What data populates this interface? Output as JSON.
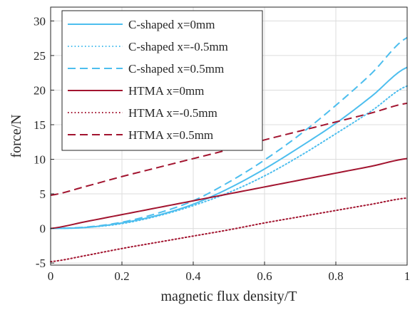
{
  "chart_data": {
    "type": "line",
    "xlabel": "magnetic flux density/T",
    "ylabel": "force/N",
    "xlim": [
      0,
      1
    ],
    "ylim": [
      -5.3,
      32
    ],
    "xticks": [
      0,
      0.2,
      0.4,
      0.6,
      0.8,
      1
    ],
    "xtick_labels": [
      "0",
      "0.2",
      "0.4",
      "0.6",
      "0.8",
      "1"
    ],
    "yticks": [
      -5,
      0,
      5,
      10,
      15,
      20,
      25,
      30
    ],
    "ytick_labels": [
      "-5",
      "0",
      "5",
      "10",
      "15",
      "20",
      "25",
      "30"
    ],
    "grid": true,
    "legend_position": "top-left",
    "x": [
      0,
      0.1,
      0.2,
      0.3,
      0.4,
      0.5,
      0.6,
      0.7,
      0.8,
      0.9,
      1.0
    ],
    "series": [
      {
        "name": "C-shaped x=0mm",
        "color": "#4DBEEE",
        "dash": "solid",
        "values": [
          0,
          0.15,
          0.8,
          1.9,
          3.5,
          5.8,
          8.6,
          11.8,
          15.2,
          19.1,
          23.3
        ]
      },
      {
        "name": "C-shaped x=-0.5mm",
        "color": "#4DBEEE",
        "dash": "dotted",
        "values": [
          0,
          0.15,
          0.7,
          1.8,
          3.3,
          5.2,
          7.6,
          10.5,
          13.7,
          17.0,
          20.6
        ]
      },
      {
        "name": "C-shaped x=0.5mm",
        "color": "#4DBEEE",
        "dash": "dashed",
        "values": [
          0,
          0.2,
          0.9,
          2.2,
          4.0,
          6.7,
          9.9,
          13.6,
          17.8,
          22.4,
          27.6
        ]
      },
      {
        "name": "HTMA x=0mm",
        "color": "#A2142F",
        "dash": "solid",
        "values": [
          0,
          1.0,
          2.0,
          3.0,
          4.0,
          5.0,
          6.0,
          7.0,
          8.0,
          9.0,
          10.1
        ]
      },
      {
        "name": "HTMA x=-0.5mm",
        "color": "#A2142F",
        "dash": "dotted",
        "values": [
          -4.8,
          -3.9,
          -2.9,
          -2.0,
          -1.1,
          -0.2,
          0.8,
          1.7,
          2.6,
          3.5,
          4.4
        ]
      },
      {
        "name": "HTMA x=0.5mm",
        "color": "#A2142F",
        "dash": "dashed",
        "values": [
          4.8,
          6.1,
          7.5,
          8.8,
          10.1,
          11.4,
          12.8,
          14.1,
          15.4,
          16.7,
          18.1
        ]
      }
    ]
  }
}
